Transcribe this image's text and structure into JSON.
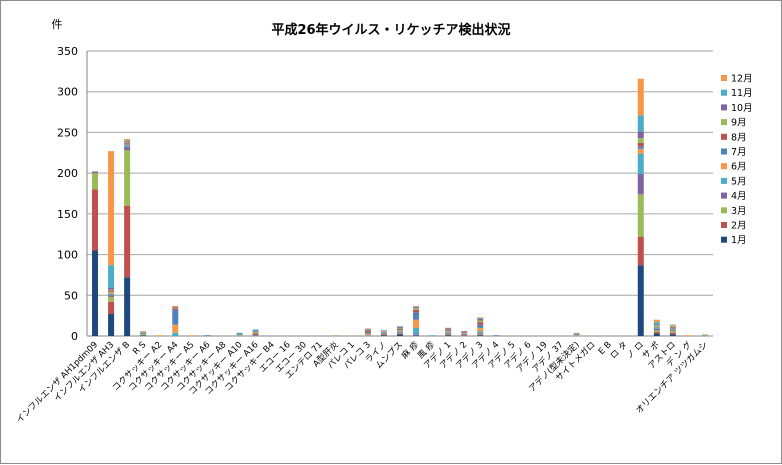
{
  "chart_data": {
    "type": "bar",
    "stacked": true,
    "title": "平成26年ウイルス・リケッチア検出状況",
    "ylabel": "件",
    "ylim": [
      0,
      350
    ],
    "yticks": [
      0,
      50,
      100,
      150,
      200,
      250,
      300,
      350
    ],
    "grid": true,
    "legend_position": "right",
    "categories": [
      "インフルエンザ AH1pdm09",
      "インフルエンザ AH3",
      "インフルエンザ B",
      "R S",
      "コクサッキー A2",
      "コクサッキー A4",
      "コクサッキー A5",
      "コクサッキー A6",
      "コクサッキー A8",
      "コクサッキー A10",
      "コクサッキー A16",
      "コクサッキー B4",
      "エコー 16",
      "エコー 30",
      "エンテロ 71",
      "A型肝炎",
      "パレコ 1",
      "パレコ 3",
      "ライノ",
      "ムンプス",
      "麻 疹",
      "風 疹",
      "アデノ 1",
      "アデノ 2",
      "アデノ 3",
      "アデノ 4",
      "アデノ 5",
      "アデノ 6",
      "アデノ 19",
      "アデノ 37",
      "アデノ(型未決定)",
      "サイトメガロ",
      "E B",
      "ロ タ",
      "ノ ロ",
      "サ ポ",
      "アストロ",
      "デ ン グ",
      "オリエンチア ツツガムシ"
    ],
    "series": [
      {
        "name": "1月",
        "values": [
          105,
          27,
          72,
          1,
          0,
          0,
          0,
          0,
          0,
          0,
          0,
          0,
          0,
          0,
          0,
          0,
          0,
          0,
          1,
          2,
          0,
          0,
          1,
          0,
          1,
          0,
          0,
          0,
          0,
          0,
          0,
          0,
          0,
          0,
          87,
          3,
          2,
          0,
          0
        ]
      },
      {
        "name": "2月",
        "values": [
          75,
          15,
          88,
          0,
          0,
          0,
          0,
          0,
          0,
          0,
          0,
          0,
          0,
          0,
          0,
          0,
          0,
          0,
          1,
          1,
          0,
          0,
          1,
          1,
          1,
          0,
          0,
          0,
          0,
          0,
          0,
          0,
          0,
          0,
          35,
          2,
          2,
          0,
          0
        ]
      },
      {
        "name": "3月",
        "values": [
          20,
          6,
          68,
          1,
          0,
          0,
          0,
          0,
          0,
          0,
          0,
          0,
          0,
          0,
          0,
          0,
          0,
          0,
          1,
          1,
          0,
          0,
          1,
          0,
          1,
          0,
          0,
          0,
          0,
          0,
          0,
          0,
          0,
          0,
          52,
          2,
          2,
          0,
          0
        ]
      },
      {
        "name": "4月",
        "values": [
          2,
          2,
          4,
          0,
          0,
          0,
          0,
          0,
          0,
          0,
          0,
          0,
          0,
          0,
          0,
          0,
          0,
          0,
          1,
          1,
          2,
          0,
          1,
          1,
          1,
          0,
          0,
          0,
          0,
          0,
          0,
          0,
          0,
          0,
          25,
          2,
          1,
          0,
          0
        ]
      },
      {
        "name": "5月",
        "values": [
          0,
          2,
          2,
          0,
          0,
          4,
          0,
          0,
          0,
          0,
          0,
          0,
          0,
          0,
          0,
          0,
          0,
          1,
          1,
          1,
          8,
          0,
          1,
          1,
          2,
          0,
          0,
          0,
          0,
          0,
          0,
          0,
          0,
          0,
          25,
          2,
          1,
          0,
          0
        ]
      },
      {
        "name": "6月",
        "values": [
          0,
          2,
          1,
          0,
          0,
          10,
          0,
          0,
          0,
          0,
          0,
          0,
          0,
          0,
          0,
          0,
          0,
          2,
          1,
          1,
          10,
          0,
          1,
          1,
          4,
          0,
          0,
          0,
          0,
          0,
          0,
          0,
          0,
          0,
          6,
          1,
          1,
          0,
          0
        ]
      },
      {
        "name": "7月",
        "values": [
          0,
          1,
          1,
          0,
          0,
          18,
          0,
          1,
          0,
          0,
          1,
          0,
          0,
          0,
          0,
          0,
          0,
          2,
          1,
          1,
          9,
          0,
          1,
          1,
          4,
          1,
          0,
          0,
          0,
          0,
          0,
          0,
          0,
          0,
          3,
          0,
          1,
          0,
          0
        ]
      },
      {
        "name": "8月",
        "values": [
          0,
          1,
          1,
          0,
          0,
          2,
          0,
          0,
          0,
          0,
          2,
          0,
          0,
          0,
          0,
          0,
          0,
          2,
          0,
          1,
          3,
          0,
          1,
          1,
          3,
          0,
          0,
          0,
          0,
          0,
          0,
          0,
          0,
          0,
          4,
          0,
          1,
          0,
          0
        ]
      },
      {
        "name": "9月",
        "values": [
          0,
          1,
          1,
          1,
          0,
          1,
          0,
          0,
          0,
          1,
          2,
          0,
          0,
          0,
          0,
          1,
          0,
          1,
          0,
          1,
          2,
          0,
          1,
          0,
          2,
          0,
          0,
          0,
          0,
          0,
          1,
          0,
          0,
          0,
          6,
          1,
          1,
          0,
          0
        ]
      },
      {
        "name": "10月",
        "values": [
          0,
          2,
          1,
          1,
          0,
          1,
          0,
          0,
          0,
          1,
          1,
          0,
          0,
          0,
          0,
          0,
          0,
          1,
          0,
          1,
          1,
          0,
          1,
          0,
          2,
          0,
          0,
          0,
          0,
          0,
          1,
          0,
          0,
          0,
          8,
          1,
          0,
          0,
          0
        ]
      },
      {
        "name": "11月",
        "values": [
          0,
          28,
          1,
          1,
          0,
          0,
          0,
          0,
          0,
          2,
          2,
          0,
          0,
          0,
          0,
          0,
          0,
          0,
          0,
          1,
          1,
          1,
          0,
          0,
          1,
          0,
          0,
          0,
          0,
          0,
          1,
          0,
          0,
          0,
          20,
          3,
          1,
          0,
          1
        ]
      },
      {
        "name": "12月",
        "values": [
          0,
          140,
          2,
          1,
          1,
          1,
          1,
          0,
          0,
          0,
          0,
          0,
          0,
          0,
          0,
          0,
          0,
          0,
          0,
          0,
          1,
          0,
          0,
          0,
          1,
          0,
          0,
          0,
          0,
          0,
          1,
          0,
          0,
          0,
          45,
          3,
          1,
          1,
          1
        ]
      }
    ],
    "colors": [
      "#1f497d",
      "#c0504d",
      "#9bbb59",
      "#8064a2",
      "#4bacc6",
      "#f79646",
      "#4f81bd",
      "#c0504d",
      "#9bbb59",
      "#8064a2",
      "#4bacc6",
      "#f79646"
    ]
  }
}
